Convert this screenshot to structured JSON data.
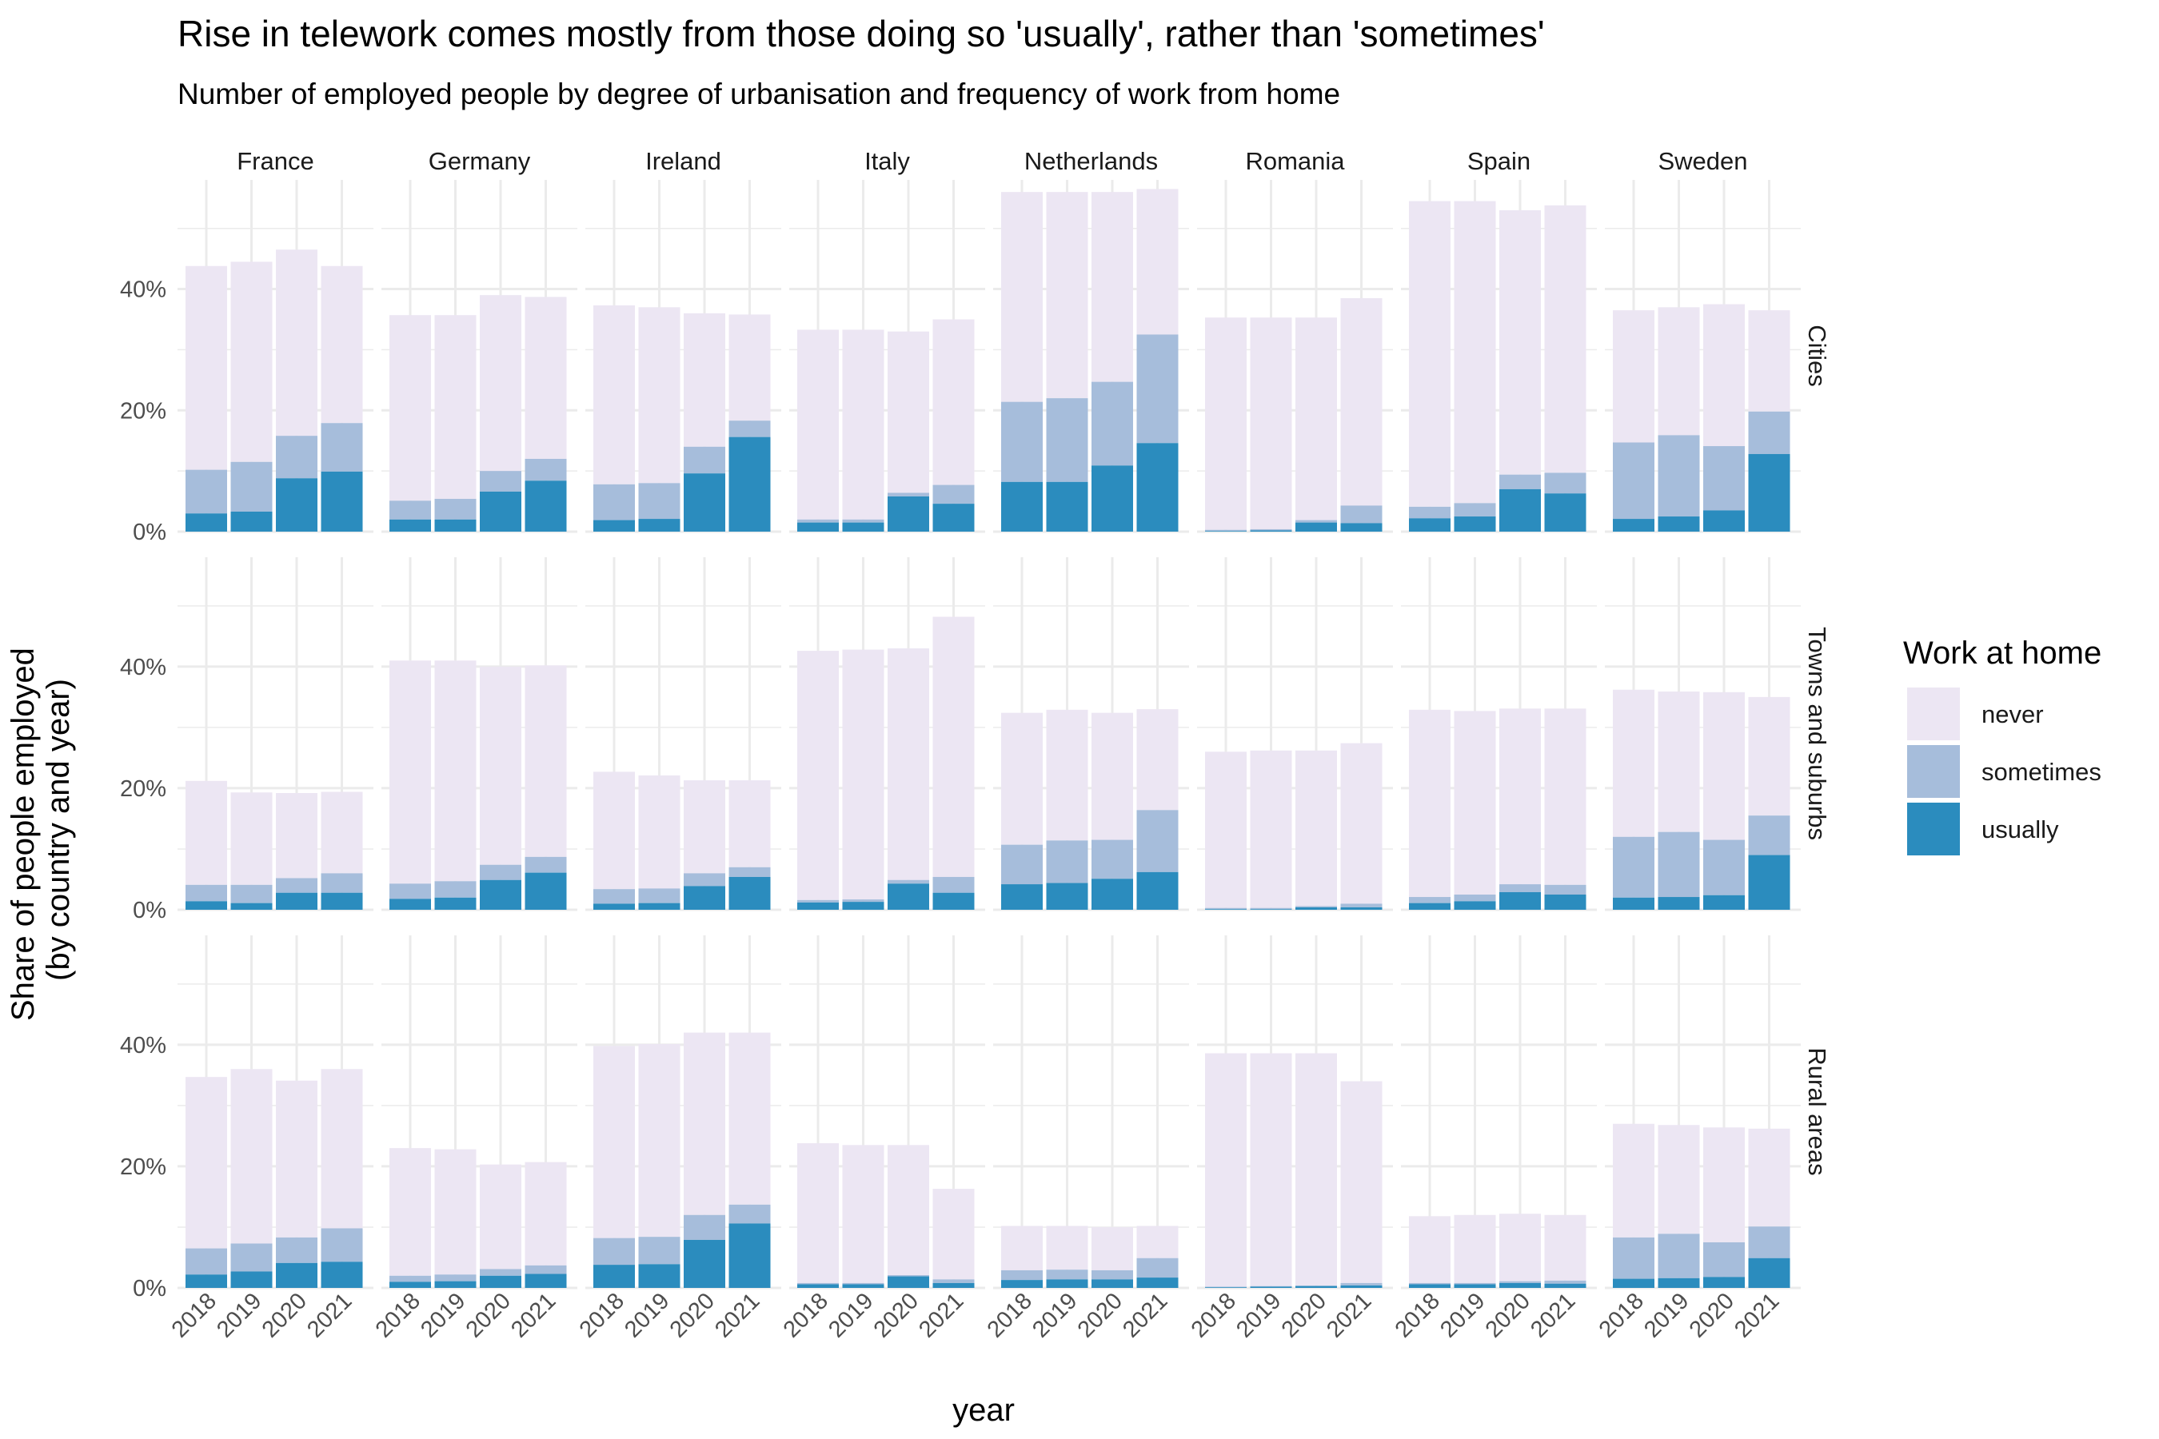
{
  "chart_data": {
    "type": "bar",
    "title": "Rise in telework comes mostly from those doing so 'usually', rather than 'sometimes'",
    "subtitle": "Number of employed people by degree of urbanisation and frequency of work from home",
    "xlabel": "year",
    "ylabel_lines": [
      "Share of people employed",
      "(by country and year)"
    ],
    "ylim": [
      0,
      0.58
    ],
    "yticks": [
      0,
      0.2,
      0.4
    ],
    "ytick_labels": [
      "0%",
      "20%",
      "40%"
    ],
    "years": [
      "2018",
      "2019",
      "2020",
      "2021"
    ],
    "countries": [
      "France",
      "Germany",
      "Ireland",
      "Italy",
      "Netherlands",
      "Romania",
      "Spain",
      "Sweden"
    ],
    "areas": [
      "Cities",
      "Towns and suburbs",
      "Rural areas"
    ],
    "legend": {
      "title": "Work at home",
      "position": "right",
      "entries": [
        {
          "key": "never",
          "label": "never",
          "color": "#ece6f3"
        },
        {
          "key": "sometimes",
          "label": "sometimes",
          "color": "#a6bddb"
        },
        {
          "key": "usually",
          "label": "usually",
          "color": "#2b8cbe"
        }
      ]
    },
    "stacked": true,
    "grid": true,
    "values": {
      "Cities": {
        "France": {
          "usually": [
            0.03,
            0.033,
            0.088,
            0.099
          ],
          "sometimes": [
            0.072,
            0.082,
            0.07,
            0.08
          ],
          "total": [
            0.438,
            0.445,
            0.465,
            0.438
          ]
        },
        "Germany": {
          "usually": [
            0.02,
            0.02,
            0.066,
            0.084
          ],
          "sometimes": [
            0.031,
            0.034,
            0.034,
            0.036
          ],
          "total": [
            0.357,
            0.357,
            0.39,
            0.387
          ]
        },
        "Ireland": {
          "usually": [
            0.019,
            0.021,
            0.096,
            0.156
          ],
          "sometimes": [
            0.059,
            0.059,
            0.044,
            0.027
          ],
          "total": [
            0.373,
            0.37,
            0.36,
            0.358
          ]
        },
        "Italy": {
          "usually": [
            0.015,
            0.015,
            0.058,
            0.046
          ],
          "sometimes": [
            0.005,
            0.005,
            0.006,
            0.031
          ],
          "total": [
            0.333,
            0.333,
            0.33,
            0.35
          ]
        },
        "Netherlands": {
          "usually": [
            0.082,
            0.082,
            0.109,
            0.146
          ],
          "sometimes": [
            0.132,
            0.138,
            0.138,
            0.179
          ],
          "total": [
            0.56,
            0.56,
            0.56,
            0.565
          ]
        },
        "Romania": {
          "usually": [
            0.001,
            0.002,
            0.015,
            0.014
          ],
          "sometimes": [
            0.002,
            0.002,
            0.004,
            0.029
          ],
          "total": [
            0.353,
            0.353,
            0.353,
            0.385
          ]
        },
        "Spain": {
          "usually": [
            0.022,
            0.025,
            0.07,
            0.063
          ],
          "sometimes": [
            0.019,
            0.022,
            0.024,
            0.034
          ],
          "total": [
            0.545,
            0.545,
            0.53,
            0.538
          ]
        },
        "Sweden": {
          "usually": [
            0.021,
            0.025,
            0.035,
            0.128
          ],
          "sometimes": [
            0.126,
            0.134,
            0.106,
            0.07
          ],
          "total": [
            0.365,
            0.37,
            0.375,
            0.365
          ]
        }
      },
      "Towns and suburbs": {
        "France": {
          "usually": [
            0.014,
            0.011,
            0.028,
            0.028
          ],
          "sometimes": [
            0.027,
            0.03,
            0.024,
            0.032
          ],
          "total": [
            0.212,
            0.193,
            0.192,
            0.194
          ]
        },
        "Germany": {
          "usually": [
            0.018,
            0.02,
            0.049,
            0.061
          ],
          "sometimes": [
            0.025,
            0.027,
            0.025,
            0.026
          ],
          "total": [
            0.41,
            0.41,
            0.4,
            0.402
          ]
        },
        "Ireland": {
          "usually": [
            0.01,
            0.011,
            0.039,
            0.054
          ],
          "sometimes": [
            0.024,
            0.024,
            0.021,
            0.016
          ],
          "total": [
            0.227,
            0.221,
            0.213,
            0.213
          ]
        },
        "Italy": {
          "usually": [
            0.012,
            0.013,
            0.043,
            0.028
          ],
          "sometimes": [
            0.004,
            0.004,
            0.006,
            0.026
          ],
          "total": [
            0.426,
            0.428,
            0.43,
            0.482
          ]
        },
        "Netherlands": {
          "usually": [
            0.042,
            0.044,
            0.051,
            0.062
          ],
          "sometimes": [
            0.065,
            0.07,
            0.064,
            0.102
          ],
          "total": [
            0.324,
            0.329,
            0.324,
            0.33
          ]
        },
        "Romania": {
          "usually": [
            0.001,
            0.001,
            0.004,
            0.004
          ],
          "sometimes": [
            0.002,
            0.002,
            0.002,
            0.006
          ],
          "total": [
            0.26,
            0.262,
            0.262,
            0.274
          ]
        },
        "Spain": {
          "usually": [
            0.011,
            0.014,
            0.029,
            0.025
          ],
          "sometimes": [
            0.01,
            0.011,
            0.013,
            0.016
          ],
          "total": [
            0.329,
            0.327,
            0.331,
            0.331
          ]
        },
        "Sweden": {
          "usually": [
            0.02,
            0.021,
            0.024,
            0.09
          ],
          "sometimes": [
            0.1,
            0.107,
            0.091,
            0.065
          ],
          "total": [
            0.362,
            0.359,
            0.358,
            0.35
          ]
        }
      },
      "Rural areas": {
        "France": {
          "usually": [
            0.022,
            0.027,
            0.041,
            0.043
          ],
          "sometimes": [
            0.043,
            0.046,
            0.042,
            0.055
          ],
          "total": [
            0.347,
            0.36,
            0.341,
            0.36
          ]
        },
        "Germany": {
          "usually": [
            0.01,
            0.011,
            0.02,
            0.023
          ],
          "sometimes": [
            0.01,
            0.011,
            0.011,
            0.014
          ],
          "total": [
            0.23,
            0.228,
            0.203,
            0.207
          ]
        },
        "Ireland": {
          "usually": [
            0.038,
            0.039,
            0.079,
            0.106
          ],
          "sometimes": [
            0.044,
            0.045,
            0.041,
            0.031
          ],
          "total": [
            0.398,
            0.401,
            0.42,
            0.42
          ]
        },
        "Italy": {
          "usually": [
            0.006,
            0.006,
            0.019,
            0.008
          ],
          "sometimes": [
            0.002,
            0.002,
            0.002,
            0.006
          ],
          "total": [
            0.238,
            0.235,
            0.235,
            0.163
          ]
        },
        "Netherlands": {
          "usually": [
            0.013,
            0.014,
            0.014,
            0.017
          ],
          "sometimes": [
            0.016,
            0.016,
            0.015,
            0.032
          ],
          "total": [
            0.102,
            0.102,
            0.1,
            0.102
          ]
        },
        "Romania": {
          "usually": [
            0.001,
            0.002,
            0.003,
            0.004
          ],
          "sometimes": [
            0.001,
            0.001,
            0.001,
            0.004
          ],
          "total": [
            0.386,
            0.386,
            0.386,
            0.34
          ]
        },
        "Spain": {
          "usually": [
            0.006,
            0.006,
            0.008,
            0.007
          ],
          "sometimes": [
            0.002,
            0.002,
            0.003,
            0.005
          ],
          "total": [
            0.118,
            0.12,
            0.122,
            0.12
          ]
        },
        "Sweden": {
          "usually": [
            0.015,
            0.016,
            0.018,
            0.049
          ],
          "sometimes": [
            0.068,
            0.073,
            0.057,
            0.052
          ],
          "total": [
            0.27,
            0.268,
            0.264,
            0.262
          ]
        }
      }
    }
  }
}
